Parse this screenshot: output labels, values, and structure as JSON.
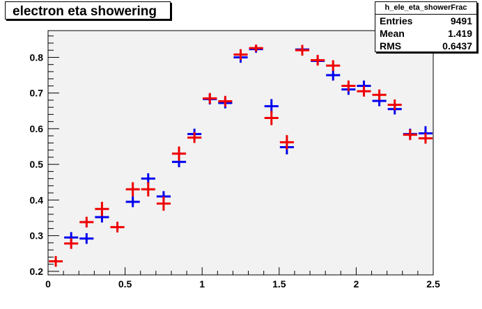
{
  "chart_data": {
    "type": "scatter",
    "title": "electron eta showering",
    "xlim": [
      0,
      2.5
    ],
    "ylim": [
      0.19,
      0.875
    ],
    "x_ticks": [
      0,
      0.5,
      1,
      1.5,
      2,
      2.5
    ],
    "x_tick_labels": [
      "0",
      "0.5",
      "1",
      "1.5",
      "2",
      "2.5"
    ],
    "y_ticks": [
      0.2,
      0.3,
      0.4,
      0.5,
      0.6,
      0.7,
      0.8
    ],
    "y_tick_labels": [
      "0.2",
      "0.3",
      "0.4",
      "0.5",
      "0.6",
      "0.7",
      "0.8"
    ],
    "bin_half_width": 0.05,
    "plot_background": "#f2f2f2",
    "series": [
      {
        "color": "#0000ee",
        "x": [
          0.15,
          0.25,
          0.35,
          0.55,
          0.65,
          0.75,
          0.85,
          0.95,
          1.05,
          1.15,
          1.25,
          1.35,
          1.45,
          1.55,
          1.65,
          1.75,
          1.85,
          1.95,
          2.05,
          2.15,
          2.25,
          2.35,
          2.45
        ],
        "y": [
          0.295,
          0.292,
          0.352,
          0.395,
          0.46,
          0.41,
          0.507,
          0.585,
          0.683,
          0.672,
          0.8,
          0.823,
          0.663,
          0.548,
          0.822,
          0.79,
          0.75,
          0.71,
          0.72,
          0.678,
          0.655,
          0.585,
          0.587
        ],
        "yerr": [
          0.015,
          0.015,
          0.015,
          0.015,
          0.015,
          0.015,
          0.015,
          0.015,
          0.015,
          0.015,
          0.015,
          0.01,
          0.02,
          0.02,
          0.01,
          0.01,
          0.015,
          0.015,
          0.015,
          0.015,
          0.015,
          0.015,
          0.02
        ]
      },
      {
        "color": "#ee0000",
        "x": [
          0.05,
          0.15,
          0.25,
          0.35,
          0.45,
          0.55,
          0.65,
          0.75,
          0.85,
          0.95,
          1.05,
          1.15,
          1.25,
          1.35,
          1.45,
          1.55,
          1.65,
          1.75,
          1.85,
          1.95,
          2.05,
          2.15,
          2.25,
          2.35,
          2.45
        ],
        "y": [
          0.228,
          0.278,
          0.338,
          0.375,
          0.324,
          0.43,
          0.43,
          0.39,
          0.53,
          0.575,
          0.685,
          0.677,
          0.808,
          0.826,
          0.63,
          0.562,
          0.82,
          0.792,
          0.777,
          0.72,
          0.705,
          0.695,
          0.667,
          0.583,
          0.573
        ],
        "yerr": [
          0.015,
          0.015,
          0.015,
          0.02,
          0.015,
          0.02,
          0.02,
          0.02,
          0.02,
          0.015,
          0.015,
          0.015,
          0.015,
          0.01,
          0.02,
          0.02,
          0.015,
          0.015,
          0.015,
          0.015,
          0.015,
          0.015,
          0.015,
          0.015,
          0.015
        ]
      }
    ]
  },
  "stats": {
    "name": "h_ele_eta_showerFrac",
    "rows": [
      {
        "label": "Entries",
        "value": "9491"
      },
      {
        "label": "Mean",
        "value": "1.419"
      },
      {
        "label": "RMS",
        "value": "0.6437"
      }
    ]
  }
}
